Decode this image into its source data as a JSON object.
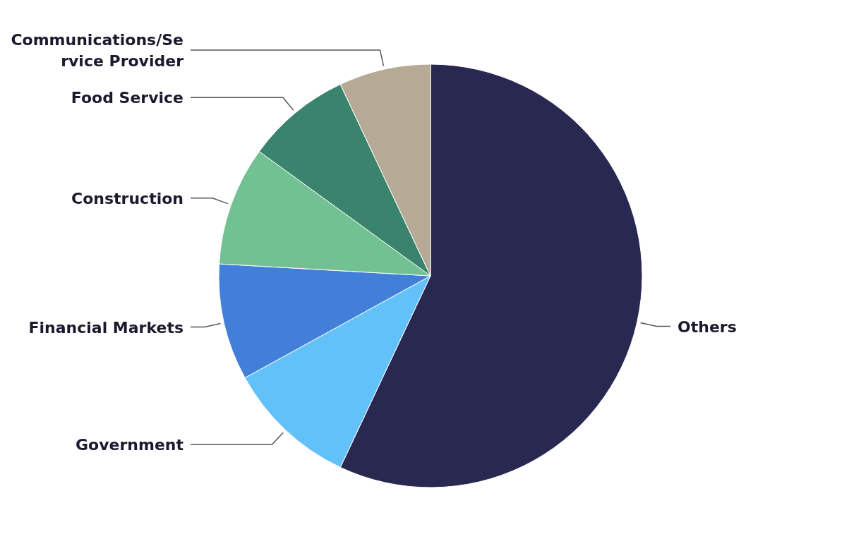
{
  "chart_data": {
    "type": "pie",
    "categories": [
      "Others",
      "Government",
      "Financial Markets",
      "Construction",
      "Food Service",
      "Communications/Service Provider"
    ],
    "values": [
      57,
      10,
      8.9,
      9.1,
      8,
      7
    ],
    "colors": [
      "#282850",
      "#62c1f8",
      "#427fd8",
      "#72c192",
      "#3a836c",
      "#b6a996"
    ]
  }
}
